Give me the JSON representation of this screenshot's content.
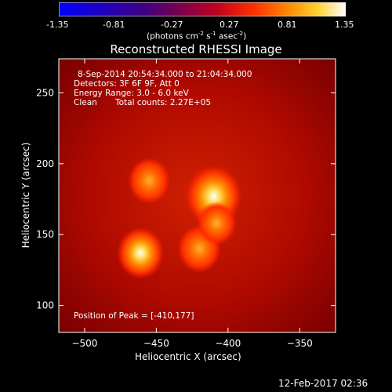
{
  "chart_data": {
    "type": "heatmap",
    "title": "Reconstructed RHESSI Image",
    "xlabel": "Heliocentric X (arcsec)",
    "ylabel": "Heliocentric Y (arcsec)",
    "xlim": [
      -518,
      -325
    ],
    "ylim": [
      81,
      274
    ],
    "x_ticks": [
      -500,
      -450,
      -400,
      -350
    ],
    "y_ticks": [
      100,
      150,
      200,
      250
    ],
    "colorbar": {
      "min": -1.35,
      "max": 1.35,
      "ticks": [
        "-1.35",
        "-0.81",
        "-0.27",
        "0.27",
        "0.81",
        "1.35"
      ],
      "unit_label": "(photons cm",
      "unit_sup1": "-2",
      "unit_mid": " s",
      "unit_sup2": "-1",
      "unit_mid2": " asec",
      "unit_sup3": "-2",
      "unit_end": ")",
      "colormap": "red-temperature"
    },
    "sources": [
      {
        "x": -410,
        "y": 177,
        "intensity": 1.35
      },
      {
        "x": -461,
        "y": 137,
        "intensity": 1.0
      },
      {
        "x": -455,
        "y": 188,
        "intensity": 0.8
      },
      {
        "x": -420,
        "y": 140,
        "intensity": 0.85
      },
      {
        "x": -408,
        "y": 158,
        "intensity": 0.7
      }
    ],
    "annotations": {
      "line1": "8-Sep-2014 20:54:34.000 to 21:04:34.000",
      "line2": "Detectors: 3F 6F 9F, Att 0",
      "line3": "Energy Range: 3.0 - 6.0 keV",
      "line4_a": "Clean",
      "line4_b": "Total counts: 2.27E+05",
      "peak": "Position of Peak = [-410,177]"
    },
    "footer_date": "12-Feb-2017 02:36"
  }
}
